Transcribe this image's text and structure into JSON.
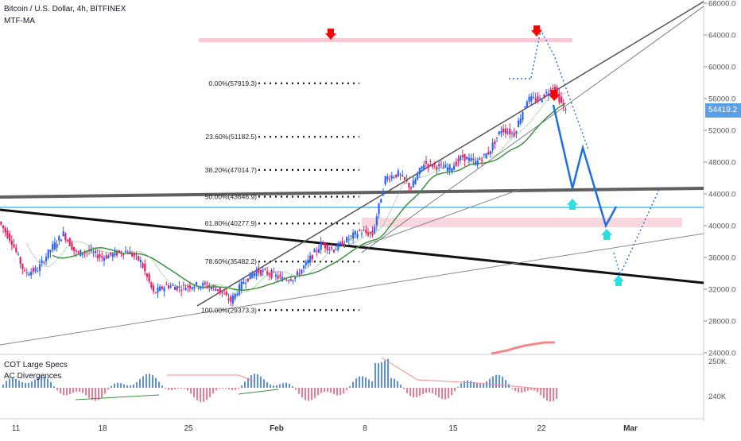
{
  "header": {
    "title": "Bitcoin / U.S. Dollar, 4h, BITFINEX",
    "indicator": "MTF-MA"
  },
  "subpane": {
    "label1": "COT Large Specs",
    "label2": "AC Divergences",
    "ticks": [
      "250K",
      "240K"
    ]
  },
  "price_tag": "54419.2",
  "colors": {
    "up": "#2962ff",
    "down": "#e91e63",
    "ma": "#3d9140",
    "projection": "#1e6fe0",
    "dotted": "#1e6fe0",
    "arrow_down": "#ff0000",
    "arrow_up": "#26e2e2",
    "zone": "#f8c9d4",
    "hline": "#2bb5e6",
    "cot_line": "#f08a8a"
  },
  "chart_data": {
    "type": "candlestick",
    "title": "Bitcoin / U.S. Dollar, 4h, BITFINEX",
    "x_tick_labels": [
      "11",
      "18",
      "25",
      "Feb",
      "8",
      "15",
      "22",
      "Mar"
    ],
    "y_ticks": [
      24000,
      28000,
      32000,
      36000,
      40000,
      44000,
      48000,
      52000,
      56000,
      60000,
      64000,
      68000
    ],
    "y_tick_labels": [
      "24000.0",
      "28000.0",
      "32000.0",
      "36000.0",
      "40000.0",
      "44000.0",
      "48000.0",
      "52000.0",
      "56000.0",
      "60000.0",
      "64000.0",
      "68000.0"
    ],
    "ylim": [
      24000,
      68500
    ],
    "last_price": 54419.2,
    "fibonacci": [
      {
        "label": "0.00%(57919.3)",
        "price": 57919.3
      },
      {
        "label": "23.60%(51182.5)",
        "price": 51182.5
      },
      {
        "label": "38.20%(47014.7)",
        "price": 47014.7
      },
      {
        "label": "50.00%(43646.9)",
        "price": 43646.9
      },
      {
        "label": "61.80%(40277.9)",
        "price": 40277.9
      },
      {
        "label": "78.60%(35482.2)",
        "price": 35482.2
      },
      {
        "label": "100.00%(29373.3)",
        "price": 29373.3
      }
    ],
    "key_levels": {
      "resistance_zone": [
        63000,
        63600
      ],
      "support_zone": [
        39800,
        41000
      ],
      "horizontal_line": 42300
    },
    "price_path": [
      {
        "date": "Jan 9",
        "price": 40500
      },
      {
        "date": "Jan 10",
        "price": 38000
      },
      {
        "date": "Jan 11",
        "price": 34000
      },
      {
        "date": "Jan 12",
        "price": 34500
      },
      {
        "date": "Jan 13",
        "price": 37000
      },
      {
        "date": "Jan 14",
        "price": 39000
      },
      {
        "date": "Jan 15",
        "price": 36500
      },
      {
        "date": "Jan 16",
        "price": 36800
      },
      {
        "date": "Jan 17",
        "price": 36000
      },
      {
        "date": "Jan 18",
        "price": 36500
      },
      {
        "date": "Jan 19",
        "price": 36800
      },
      {
        "date": "Jan 20",
        "price": 35500
      },
      {
        "date": "Jan 21",
        "price": 31500
      },
      {
        "date": "Jan 22",
        "price": 32500
      },
      {
        "date": "Jan 23",
        "price": 32200
      },
      {
        "date": "Jan 24",
        "price": 32500
      },
      {
        "date": "Jan 25",
        "price": 32500
      },
      {
        "date": "Jan 26",
        "price": 32000
      },
      {
        "date": "Jan 27",
        "price": 30500
      },
      {
        "date": "Jan 28",
        "price": 33000
      },
      {
        "date": "Jan 29",
        "price": 34300
      },
      {
        "date": "Jan 30",
        "price": 34000
      },
      {
        "date": "Jan 31",
        "price": 33300
      },
      {
        "date": "Feb 1",
        "price": 33500
      },
      {
        "date": "Feb 2",
        "price": 35500
      },
      {
        "date": "Feb 3",
        "price": 37700
      },
      {
        "date": "Feb 4",
        "price": 37000
      },
      {
        "date": "Feb 5",
        "price": 38200
      },
      {
        "date": "Feb 6",
        "price": 39300
      },
      {
        "date": "Feb 7",
        "price": 38900
      },
      {
        "date": "Feb 8",
        "price": 46000
      },
      {
        "date": "Feb 9",
        "price": 46500
      },
      {
        "date": "Feb 10",
        "price": 44800
      },
      {
        "date": "Feb 11",
        "price": 47900
      },
      {
        "date": "Feb 12",
        "price": 47500
      },
      {
        "date": "Feb 13",
        "price": 47200
      },
      {
        "date": "Feb 14",
        "price": 48700
      },
      {
        "date": "Feb 15",
        "price": 47900
      },
      {
        "date": "Feb 16",
        "price": 49200
      },
      {
        "date": "Feb 17",
        "price": 52100
      },
      {
        "date": "Feb 18",
        "price": 51600
      },
      {
        "date": "Feb 19",
        "price": 55900
      },
      {
        "date": "Feb 20",
        "price": 55900
      },
      {
        "date": "Feb 21",
        "price": 57500
      },
      {
        "date": "Feb 22",
        "price": 54400
      }
    ]
  }
}
